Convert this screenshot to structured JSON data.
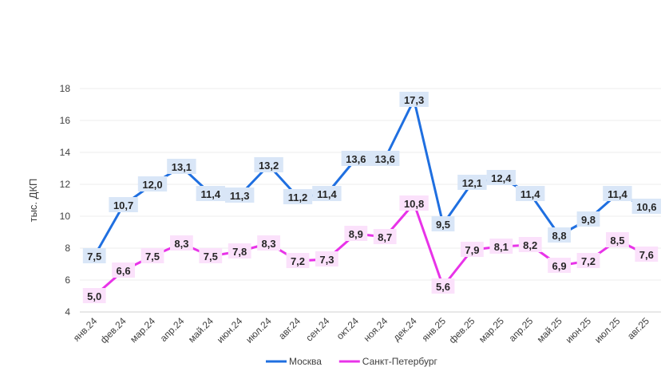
{
  "chart_data": {
    "type": "line",
    "title": "",
    "xlabel": "",
    "ylabel": "тыс. ДКП",
    "ylim": [
      4,
      18
    ],
    "yticks": [
      "4",
      "6",
      "8",
      "10",
      "12",
      "14",
      "16",
      "18"
    ],
    "grid": true,
    "legend_position": "bottom",
    "categories": [
      "янв.24",
      "фев.24",
      "мар.24",
      "апр.24",
      "май.24",
      "июн.24",
      "июл.24",
      "авг.24",
      "сен.24",
      "окт.24",
      "ноя.24",
      "дек.24",
      "янв.25",
      "фев.25",
      "мар.25",
      "апр.25",
      "май.25",
      "июн.25",
      "июл.25",
      "авг.25"
    ],
    "series": [
      {
        "name": "Москва",
        "color": "#1f6fe0",
        "label_bg": "#d9e6f7",
        "values": [
          7.5,
          10.7,
          12.0,
          13.1,
          11.4,
          11.3,
          13.2,
          11.2,
          11.4,
          13.6,
          13.6,
          17.3,
          9.5,
          12.1,
          12.4,
          11.4,
          8.8,
          9.8,
          11.4,
          10.6
        ],
        "labels": [
          "7,5",
          "10,7",
          "12,0",
          "13,1",
          "11,4",
          "11,3",
          "13,2",
          "11,2",
          "11,4",
          "13,6",
          "13,6",
          "17,3",
          "9,5",
          "12,1",
          "12,4",
          "11,4",
          "8,8",
          "9,8",
          "11,4",
          "10,6"
        ]
      },
      {
        "name": "Санкт-Петербург",
        "color": "#e833e8",
        "label_bg": "#fbe1fb",
        "values": [
          5.0,
          6.6,
          7.5,
          8.3,
          7.5,
          7.8,
          8.3,
          7.2,
          7.3,
          8.9,
          8.7,
          10.8,
          5.6,
          7.9,
          8.1,
          8.2,
          6.9,
          7.2,
          8.5,
          7.6
        ],
        "labels": [
          "5,0",
          "6,6",
          "7,5",
          "8,3",
          "7,5",
          "7,8",
          "8,3",
          "7,2",
          "7,3",
          "8,9",
          "8,7",
          "10,8",
          "5,6",
          "7,9",
          "8,1",
          "8,2",
          "6,9",
          "7,2",
          "8,5",
          "7,6"
        ]
      }
    ]
  }
}
